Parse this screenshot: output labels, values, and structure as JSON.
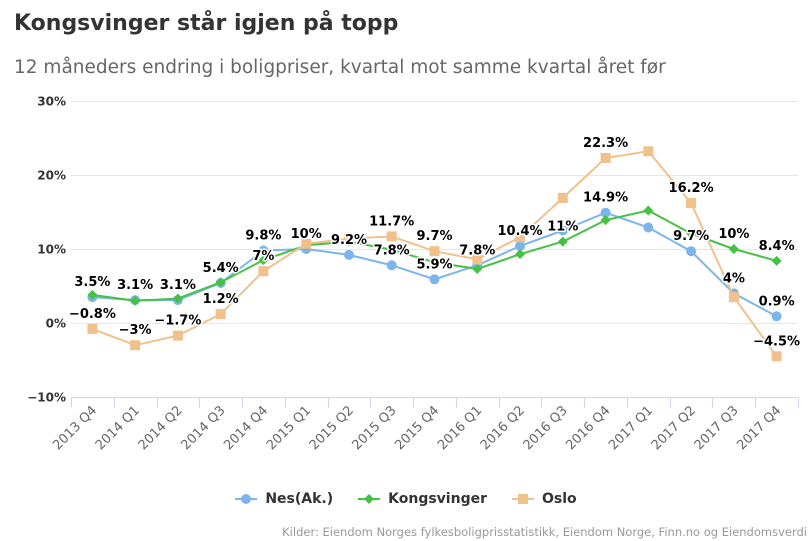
{
  "chart_data": {
    "type": "line",
    "title": "Kongsvinger står igjen på topp",
    "subtitle": "12 måneders endring i boligpriser, kvartal mot samme kvartal året før",
    "source": "Kilder: Eiendom Norges fylkesboligprisstatistikk, Eiendom Norge, Finn.no og Eiendomsverdi",
    "categories": [
      "2013 Q4",
      "2014 Q1",
      "2014 Q2",
      "2014 Q3",
      "2014 Q4",
      "2015 Q1",
      "2015 Q2",
      "2015 Q3",
      "2015 Q4",
      "2016 Q1",
      "2016 Q2",
      "2016 Q3",
      "2016 Q4",
      "2017 Q1",
      "2017 Q2",
      "2017 Q3",
      "2017 Q4"
    ],
    "ylim": [
      -10,
      30
    ],
    "y_ticks": [
      {
        "value": 30,
        "label": "30%"
      },
      {
        "value": 20,
        "label": "20%"
      },
      {
        "value": 10,
        "label": "10%"
      },
      {
        "value": 0,
        "label": "0%"
      },
      {
        "value": -10,
        "label": "−10%"
      }
    ],
    "grid": true,
    "legend_position": "bottom",
    "series": [
      {
        "name": "Nes(Ak.)",
        "color": "#7cb5ec",
        "marker": "circle",
        "values": [
          3.5,
          3.1,
          3.1,
          5.4,
          9.8,
          10,
          9.2,
          7.8,
          5.9,
          7.8,
          10.4,
          12.5,
          14.9,
          12.9,
          9.7,
          4,
          0.9
        ]
      },
      {
        "name": "Kongsvinger",
        "color": "#45c245",
        "marker": "diamond",
        "values": [
          3.8,
          3.0,
          3.3,
          5.5,
          8.5,
          10.5,
          11.0,
          9.9,
          8.2,
          7.3,
          9.3,
          11.0,
          13.9,
          15.2,
          12.1,
          10.0,
          8.4
        ]
      },
      {
        "name": "Oslo",
        "color": "#f1c18c",
        "marker": "square",
        "values": [
          -0.8,
          -3,
          -1.7,
          1.2,
          7,
          10.7,
          11.4,
          11.7,
          9.7,
          8.6,
          11.6,
          16.9,
          22.3,
          23.2,
          16.2,
          3.5,
          -4.5
        ]
      }
    ],
    "data_labels": [
      {
        "series": 0,
        "index": 0,
        "text": "3.5%"
      },
      {
        "series": 2,
        "index": 0,
        "text": "−0.8%"
      },
      {
        "series": 0,
        "index": 1,
        "text": "3.1%"
      },
      {
        "series": 2,
        "index": 1,
        "text": "−3%"
      },
      {
        "series": 0,
        "index": 2,
        "text": "3.1%"
      },
      {
        "series": 2,
        "index": 2,
        "text": "−1.7%"
      },
      {
        "series": 0,
        "index": 3,
        "text": "5.4%"
      },
      {
        "series": 2,
        "index": 3,
        "text": "1.2%"
      },
      {
        "series": 0,
        "index": 4,
        "text": "9.8%"
      },
      {
        "series": 2,
        "index": 4,
        "text": "7%"
      },
      {
        "series": 0,
        "index": 5,
        "text": "10%"
      },
      {
        "series": 0,
        "index": 6,
        "text": "9.2%"
      },
      {
        "series": 2,
        "index": 7,
        "text": "11.7%"
      },
      {
        "series": 0,
        "index": 7,
        "text": "7.8%"
      },
      {
        "series": 2,
        "index": 8,
        "text": "9.7%"
      },
      {
        "series": 0,
        "index": 8,
        "text": "5.9%"
      },
      {
        "series": 0,
        "index": 9,
        "text": "7.8%"
      },
      {
        "series": 0,
        "index": 10,
        "text": "10.4%"
      },
      {
        "series": 1,
        "index": 11,
        "text": "11%"
      },
      {
        "series": 2,
        "index": 12,
        "text": "22.3%"
      },
      {
        "series": 0,
        "index": 12,
        "text": "14.9%"
      },
      {
        "series": 2,
        "index": 14,
        "text": "16.2%"
      },
      {
        "series": 0,
        "index": 14,
        "text": "9.7%"
      },
      {
        "series": 1,
        "index": 15,
        "text": "10%"
      },
      {
        "series": 0,
        "index": 15,
        "text": "4%"
      },
      {
        "series": 1,
        "index": 16,
        "text": "8.4%"
      },
      {
        "series": 0,
        "index": 16,
        "text": "0.9%"
      },
      {
        "series": 2,
        "index": 16,
        "text": "−4.5%"
      }
    ]
  }
}
